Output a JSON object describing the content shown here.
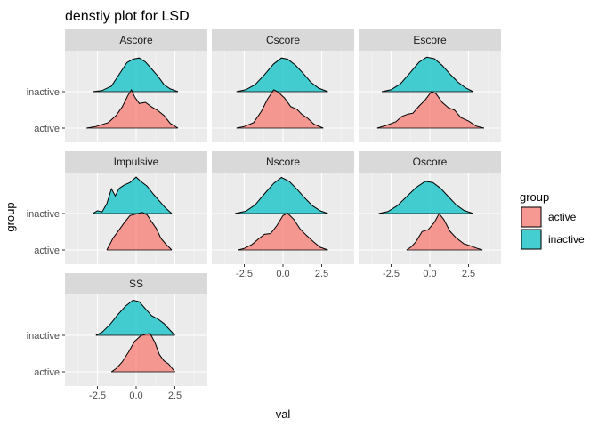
{
  "chart_data": {
    "type": "ridgeline-density",
    "title": "denstiy plot for LSD",
    "xlabel": "val",
    "ylabel": "group",
    "xlim": [
      -4.6,
      4.6
    ],
    "xticks": [
      -2.5,
      0.0,
      2.5
    ],
    "xtick_labels": [
      "-2.5",
      "0.0",
      "2.5"
    ],
    "ycategories": [
      "active",
      "inactive"
    ],
    "grid": true,
    "legend": {
      "title": "group",
      "position": "right",
      "items": [
        {
          "name": "active",
          "color": "#F8766D"
        },
        {
          "name": "inactive",
          "color": "#00BFC4"
        }
      ]
    },
    "panels": [
      {
        "label": "Ascore",
        "series": [
          {
            "name": "inactive",
            "points": [
              [
                -2.8,
                0
              ],
              [
                -2.2,
                0.03
              ],
              [
                -1.6,
                0.14
              ],
              [
                -1,
                0.5
              ],
              [
                -0.6,
                0.74
              ],
              [
                -0.2,
                0.83
              ],
              [
                0.2,
                0.86
              ],
              [
                0.6,
                0.76
              ],
              [
                1.0,
                0.58
              ],
              [
                1.4,
                0.4
              ],
              [
                1.8,
                0.18
              ],
              [
                2.2,
                0.07
              ],
              [
                2.7,
                0
              ]
            ]
          },
          {
            "name": "active",
            "points": [
              [
                -3.2,
                0
              ],
              [
                -2.6,
                0.04
              ],
              [
                -1.8,
                0.14
              ],
              [
                -1.3,
                0.32
              ],
              [
                -0.9,
                0.54
              ],
              [
                -0.5,
                0.86
              ],
              [
                -0.3,
                0.98
              ],
              [
                -0.1,
                0.8
              ],
              [
                0.2,
                0.63
              ],
              [
                0.6,
                0.66
              ],
              [
                1.0,
                0.54
              ],
              [
                1.4,
                0.45
              ],
              [
                1.8,
                0.32
              ],
              [
                2.2,
                0.12
              ],
              [
                2.7,
                0
              ]
            ]
          }
        ]
      },
      {
        "label": "Cscore",
        "series": [
          {
            "name": "inactive",
            "points": [
              [
                -3.0,
                0
              ],
              [
                -2.4,
                0.05
              ],
              [
                -1.8,
                0.18
              ],
              [
                -1.2,
                0.43
              ],
              [
                -0.6,
                0.71
              ],
              [
                -0.1,
                0.86
              ],
              [
                0.3,
                0.83
              ],
              [
                0.8,
                0.68
              ],
              [
                1.3,
                0.47
              ],
              [
                1.8,
                0.24
              ],
              [
                2.3,
                0.09
              ],
              [
                2.9,
                0
              ]
            ]
          },
          {
            "name": "active",
            "points": [
              [
                -3.0,
                0
              ],
              [
                -2.5,
                0.04
              ],
              [
                -1.9,
                0.14
              ],
              [
                -1.4,
                0.43
              ],
              [
                -1.0,
                0.74
              ],
              [
                -0.6,
                0.98
              ],
              [
                -0.3,
                0.92
              ],
              [
                0.1,
                0.77
              ],
              [
                0.5,
                0.55
              ],
              [
                0.9,
                0.48
              ],
              [
                1.2,
                0.36
              ],
              [
                1.6,
                0.25
              ],
              [
                2.0,
                0.1
              ],
              [
                2.6,
                0
              ]
            ]
          }
        ]
      },
      {
        "label": "Escore",
        "series": [
          {
            "name": "inactive",
            "points": [
              [
                -3.1,
                0
              ],
              [
                -2.5,
                0.05
              ],
              [
                -1.9,
                0.2
              ],
              [
                -1.3,
                0.47
              ],
              [
                -0.7,
                0.75
              ],
              [
                -0.2,
                0.88
              ],
              [
                0.3,
                0.84
              ],
              [
                0.8,
                0.67
              ],
              [
                1.3,
                0.45
              ],
              [
                1.8,
                0.25
              ],
              [
                2.3,
                0.1
              ],
              [
                2.8,
                0
              ]
            ]
          },
          {
            "name": "active",
            "points": [
              [
                -3.4,
                0
              ],
              [
                -2.8,
                0.07
              ],
              [
                -2.2,
                0.16
              ],
              [
                -1.8,
                0.3
              ],
              [
                -1.4,
                0.36
              ],
              [
                -1.1,
                0.38
              ],
              [
                -0.7,
                0.56
              ],
              [
                -0.3,
                0.72
              ],
              [
                0.1,
                0.93
              ],
              [
                0.4,
                0.88
              ],
              [
                0.8,
                0.66
              ],
              [
                1.2,
                0.52
              ],
              [
                1.6,
                0.46
              ],
              [
                2.0,
                0.27
              ],
              [
                2.5,
                0.18
              ],
              [
                3.0,
                0.05
              ],
              [
                3.5,
                0
              ]
            ]
          }
        ]
      },
      {
        "label": "Impulsive",
        "series": [
          {
            "name": "inactive",
            "points": [
              [
                -2.8,
                0
              ],
              [
                -2.5,
                0.07
              ],
              [
                -2.2,
                0.04
              ],
              [
                -1.9,
                0.25
              ],
              [
                -1.6,
                0.63
              ],
              [
                -1.35,
                0.45
              ],
              [
                -1.1,
                0.64
              ],
              [
                -0.8,
                0.72
              ],
              [
                -0.4,
                0.79
              ],
              [
                0,
                0.93
              ],
              [
                0.3,
                0.82
              ],
              [
                0.7,
                0.7
              ],
              [
                1.1,
                0.5
              ],
              [
                1.5,
                0.32
              ],
              [
                1.9,
                0.14
              ],
              [
                2.3,
                0
              ]
            ]
          },
          {
            "name": "active",
            "points": [
              [
                -1.9,
                0
              ],
              [
                -1.7,
                0.14
              ],
              [
                -1.5,
                0.3
              ],
              [
                -1.2,
                0.46
              ],
              [
                -0.8,
                0.68
              ],
              [
                -0.4,
                0.88
              ],
              [
                0,
                0.92
              ],
              [
                0.4,
                0.96
              ],
              [
                0.7,
                0.9
              ],
              [
                1.0,
                0.72
              ],
              [
                1.3,
                0.55
              ],
              [
                1.6,
                0.3
              ],
              [
                1.9,
                0.16
              ],
              [
                2.3,
                0
              ]
            ]
          }
        ]
      },
      {
        "label": "Nscore",
        "series": [
          {
            "name": "inactive",
            "points": [
              [
                -3.1,
                0
              ],
              [
                -2.4,
                0.06
              ],
              [
                -1.8,
                0.22
              ],
              [
                -1.2,
                0.5
              ],
              [
                -0.6,
                0.77
              ],
              [
                -0.1,
                0.92
              ],
              [
                0.4,
                0.82
              ],
              [
                0.9,
                0.62
              ],
              [
                1.4,
                0.4
              ],
              [
                1.9,
                0.2
              ],
              [
                2.4,
                0.07
              ],
              [
                2.9,
                0
              ]
            ]
          },
          {
            "name": "active",
            "points": [
              [
                -2.9,
                0
              ],
              [
                -2.5,
                0.04
              ],
              [
                -2.0,
                0.14
              ],
              [
                -1.6,
                0.28
              ],
              [
                -1.2,
                0.4
              ],
              [
                -0.8,
                0.42
              ],
              [
                -0.4,
                0.62
              ],
              [
                0,
                0.88
              ],
              [
                0.3,
                0.94
              ],
              [
                0.7,
                0.78
              ],
              [
                1.1,
                0.54
              ],
              [
                1.5,
                0.38
              ],
              [
                2.0,
                0.2
              ],
              [
                2.4,
                0.07
              ],
              [
                2.9,
                0
              ]
            ]
          }
        ]
      },
      {
        "label": "Oscore",
        "series": [
          {
            "name": "inactive",
            "points": [
              [
                -3.3,
                0
              ],
              [
                -2.7,
                0.05
              ],
              [
                -2.1,
                0.2
              ],
              [
                -1.5,
                0.43
              ],
              [
                -0.9,
                0.66
              ],
              [
                -0.3,
                0.82
              ],
              [
                0.2,
                0.79
              ],
              [
                0.7,
                0.64
              ],
              [
                1.2,
                0.43
              ],
              [
                1.7,
                0.22
              ],
              [
                2.2,
                0.08
              ],
              [
                2.8,
                0
              ]
            ]
          },
          {
            "name": "active",
            "points": [
              [
                -1.5,
                0
              ],
              [
                -1.2,
                0.08
              ],
              [
                -0.9,
                0.21
              ],
              [
                -0.5,
                0.47
              ],
              [
                -0.1,
                0.52
              ],
              [
                0.3,
                0.71
              ],
              [
                0.6,
                0.93
              ],
              [
                0.9,
                0.78
              ],
              [
                1.3,
                0.48
              ],
              [
                1.7,
                0.31
              ],
              [
                2.2,
                0.16
              ],
              [
                2.6,
                0.11
              ],
              [
                3.0,
                0.05
              ],
              [
                3.4,
                0
              ]
            ]
          }
        ]
      },
      {
        "label": "SS",
        "series": [
          {
            "name": "inactive",
            "points": [
              [
                -2.6,
                0
              ],
              [
                -2.2,
                0.08
              ],
              [
                -1.7,
                0.27
              ],
              [
                -1.2,
                0.52
              ],
              [
                -0.7,
                0.74
              ],
              [
                -0.2,
                0.9
              ],
              [
                0.2,
                0.86
              ],
              [
                0.6,
                0.68
              ],
              [
                1.0,
                0.5
              ],
              [
                1.4,
                0.42
              ],
              [
                1.8,
                0.3
              ],
              [
                2.1,
                0.17
              ],
              [
                2.5,
                0
              ]
            ]
          },
          {
            "name": "active",
            "points": [
              [
                -1.6,
                0
              ],
              [
                -1.3,
                0.08
              ],
              [
                -0.9,
                0.25
              ],
              [
                -0.5,
                0.5
              ],
              [
                -0.1,
                0.78
              ],
              [
                0.3,
                0.92
              ],
              [
                0.6,
                0.96
              ],
              [
                0.9,
                0.98
              ],
              [
                1.2,
                0.76
              ],
              [
                1.5,
                0.44
              ],
              [
                1.8,
                0.28
              ],
              [
                2.1,
                0.2
              ],
              [
                2.5,
                0
              ]
            ]
          }
        ]
      }
    ]
  }
}
